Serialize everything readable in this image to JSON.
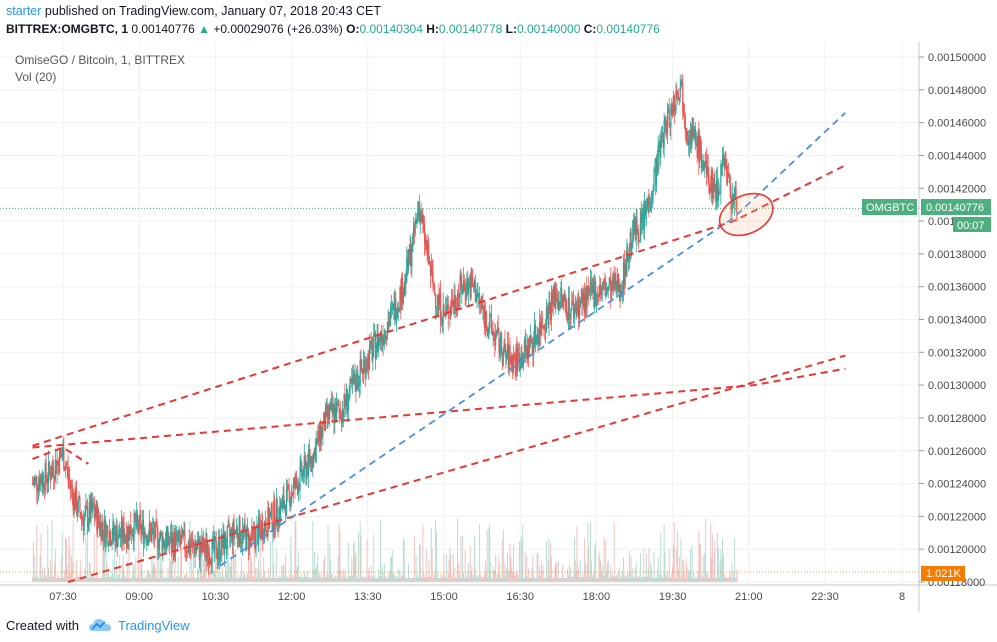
{
  "header": {
    "user": "starter",
    "published_text": "published on TradingView.com, January 07, 2018 20:43 CET",
    "symbol_line": "BITTREX:OMGBTC, 1",
    "last": "0.00140776",
    "change": "+0.00029076 (+26.03%)",
    "o_label": "O:",
    "o": "0.00140304",
    "h_label": "H:",
    "h": "0.00140778",
    "l_label": "L:",
    "l": "0.00140000",
    "c_label": "C:",
    "c": "0.00140776"
  },
  "legend": {
    "pair": "OmiseGO / Bitcoin, 1, BITTREX",
    "volume": "Vol (20)"
  },
  "price_badge": {
    "symbol": "OMGBTC",
    "price": "0.00140776",
    "countdown": "00:07"
  },
  "volume_badge": "1.021K",
  "footer": {
    "created": "Created with",
    "brand": "TradingView"
  },
  "colors": {
    "up": "#26a69a",
    "down": "#ef5350",
    "line_red": "#e53935",
    "line_blue": "#4a90e2",
    "badge": "#4caf7d",
    "volume_badge": "#f57c00"
  },
  "chart_data": {
    "type": "candlestick",
    "title": "OmiseGO / Bitcoin, 1, BITTREX",
    "x_ticks": [
      "07:30",
      "09:00",
      "10:30",
      "12:00",
      "13:30",
      "15:00",
      "16:30",
      "18:00",
      "19:30",
      "21:00",
      "22:30",
      "8"
    ],
    "y_ticks": [
      "0.00150000",
      "0.00148000",
      "0.00146000",
      "0.00144000",
      "0.00142000",
      "0.00140000",
      "0.00138000",
      "0.00136000",
      "0.00134000",
      "0.00132000",
      "0.00130000",
      "0.00128000",
      "0.00126000",
      "0.00124000",
      "0.00122000",
      "0.00120000",
      "0.00118000"
    ],
    "ylim": [
      0.00118,
      0.0015
    ],
    "price_path": [
      [
        6.9,
        0.00124
      ],
      [
        7.2,
        0.001245
      ],
      [
        7.5,
        0.001258
      ],
      [
        7.7,
        0.001232
      ],
      [
        7.9,
        0.001218
      ],
      [
        8.1,
        0.001223
      ],
      [
        8.3,
        0.001212
      ],
      [
        8.6,
        0.001208
      ],
      [
        8.9,
        0.001214
      ],
      [
        9.2,
        0.00121
      ],
      [
        9.5,
        0.001205
      ],
      [
        9.9,
        0.001203
      ],
      [
        10.2,
        0.0012
      ],
      [
        10.5,
        0.001199
      ],
      [
        10.7,
        0.001204
      ],
      [
        10.9,
        0.001212
      ],
      [
        11.2,
        0.001205
      ],
      [
        11.5,
        0.001216
      ],
      [
        11.8,
        0.001225
      ],
      [
        12.1,
        0.00124
      ],
      [
        12.4,
        0.001256
      ],
      [
        12.7,
        0.001281
      ],
      [
        13.0,
        0.001285
      ],
      [
        13.3,
        0.001305
      ],
      [
        13.6,
        0.001322
      ],
      [
        13.8,
        0.001332
      ],
      [
        14.0,
        0.001345
      ],
      [
        14.2,
        0.00136
      ],
      [
        14.4,
        0.001388
      ],
      [
        14.5,
        0.001411
      ],
      [
        14.6,
        0.001392
      ],
      [
        14.8,
        0.001358
      ],
      [
        15.0,
        0.001342
      ],
      [
        15.2,
        0.001352
      ],
      [
        15.4,
        0.001362
      ],
      [
        15.6,
        0.001359
      ],
      [
        15.8,
        0.001342
      ],
      [
        16.0,
        0.00133
      ],
      [
        16.2,
        0.001318
      ],
      [
        16.4,
        0.001315
      ],
      [
        16.6,
        0.00132
      ],
      [
        16.8,
        0.00133
      ],
      [
        17.0,
        0.001342
      ],
      [
        17.2,
        0.001355
      ],
      [
        17.5,
        0.001346
      ],
      [
        17.8,
        0.001352
      ],
      [
        18.0,
        0.001358
      ],
      [
        18.3,
        0.001358
      ],
      [
        18.5,
        0.001362
      ],
      [
        18.7,
        0.001392
      ],
      [
        18.9,
        0.001398
      ],
      [
        19.1,
        0.00142
      ],
      [
        19.3,
        0.001452
      ],
      [
        19.5,
        0.00147
      ],
      [
        19.65,
        0.001485
      ],
      [
        19.8,
        0.001455
      ],
      [
        20.0,
        0.001446
      ],
      [
        20.2,
        0.001425
      ],
      [
        20.4,
        0.001418
      ],
      [
        20.5,
        0.001442
      ],
      [
        20.65,
        0.001415
      ],
      [
        20.78,
        0.001408
      ]
    ],
    "series": [
      {
        "name": "",
        "type": "trend",
        "style": "dashed",
        "color": "#e53935",
        "points": [
          [
            6.9,
            0.001255
          ],
          [
            7.5,
            0.001262
          ],
          [
            8.0,
            0.001252
          ]
        ]
      },
      {
        "name": "",
        "type": "trend",
        "style": "dashed",
        "color": "#e53935",
        "points": [
          [
            6.9,
            0.001262
          ],
          [
            21.1,
            0.0013
          ],
          [
            22.9,
            0.00131
          ]
        ]
      },
      {
        "name": "",
        "type": "trend",
        "style": "dashed",
        "color": "#e53935",
        "points": [
          [
            6.9,
            0.001263
          ],
          [
            20.7,
            0.0014
          ],
          [
            22.9,
            0.001434
          ]
        ]
      },
      {
        "name": "",
        "type": "trend",
        "style": "dashed",
        "color": "#e53935",
        "points": [
          [
            7.6,
            0.00118
          ],
          [
            20.9,
            0.0013
          ],
          [
            22.9,
            0.001318
          ]
        ]
      },
      {
        "name": "",
        "type": "trend",
        "style": "dashed",
        "color": "#4a90e2",
        "points": [
          [
            10.6,
            0.00119
          ],
          [
            20.7,
            0.001402
          ],
          [
            22.9,
            0.001466
          ]
        ]
      }
    ],
    "ellipse_highlight": {
      "x": 20.95,
      "y": 0.001404
    },
    "last_price": 0.00140776,
    "grid": true
  }
}
